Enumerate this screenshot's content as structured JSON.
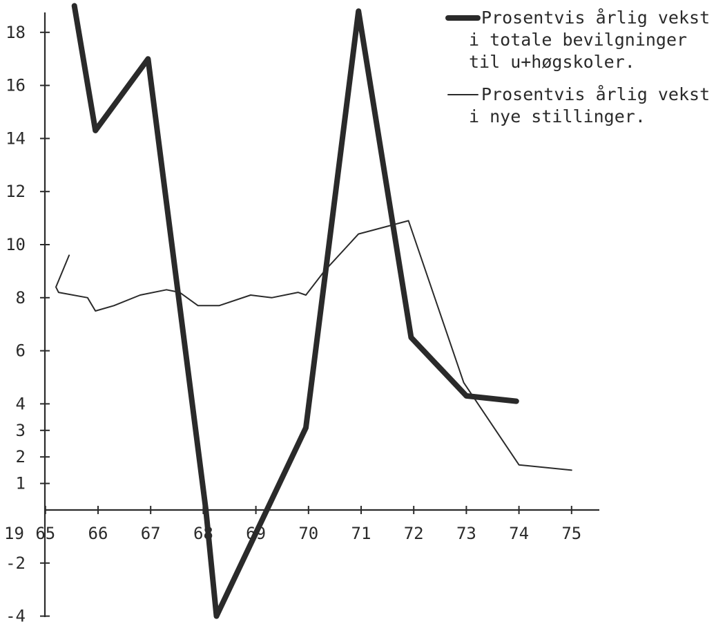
{
  "chart_data": {
    "type": "line",
    "xlabel": "",
    "ylabel": "",
    "year_prefix": "19",
    "x_ticks": [
      "65",
      "66",
      "67",
      "68",
      "69",
      "70",
      "71",
      "72",
      "73",
      "74",
      "75"
    ],
    "y_ticks": [
      "18",
      "16",
      "14",
      "12",
      "10",
      "8",
      "6",
      "4",
      "3",
      "2",
      "1",
      "-2",
      "-4"
    ],
    "ylim": [
      -4,
      19
    ],
    "grid": false,
    "legend_placement": "top-right",
    "series": [
      {
        "name": "Prosentvis årlig vekst i totale bevilgninger til u+høgskoler.",
        "legend_lines": [
          "Prosentvis årlig vekst",
          "i totale bevilgninger",
          "til u+høgskoler."
        ],
        "style": "thick",
        "color": "#2a2a2a",
        "x": [
          65.55,
          65.95,
          66.95,
          68.05,
          68.25,
          69.95,
          70.95,
          71.95,
          73.0,
          73.95
        ],
        "y": [
          19.0,
          14.3,
          17.0,
          0.0,
          -4.0,
          3.1,
          18.8,
          6.5,
          4.3,
          4.1
        ]
      },
      {
        "name": "Prosentvis årlig vekst i nye stillinger.",
        "legend_lines": [
          "Prosentvis årlig vekst",
          "i nye stillinger."
        ],
        "style": "thin",
        "color": "#2a2a2a",
        "x": [
          65.45,
          65.2,
          65.25,
          65.8,
          65.95,
          66.3,
          66.8,
          67.3,
          67.55,
          67.9,
          68.3,
          68.9,
          69.3,
          69.8,
          69.95,
          70.3,
          70.95,
          71.9,
          72.95,
          74.0,
          75.0
        ],
        "y": [
          9.6,
          8.4,
          8.2,
          8.0,
          7.5,
          7.7,
          8.1,
          8.3,
          8.2,
          7.7,
          7.7,
          8.1,
          8.0,
          8.2,
          8.1,
          9.0,
          10.4,
          10.9,
          4.8,
          1.7,
          1.5
        ]
      }
    ]
  }
}
